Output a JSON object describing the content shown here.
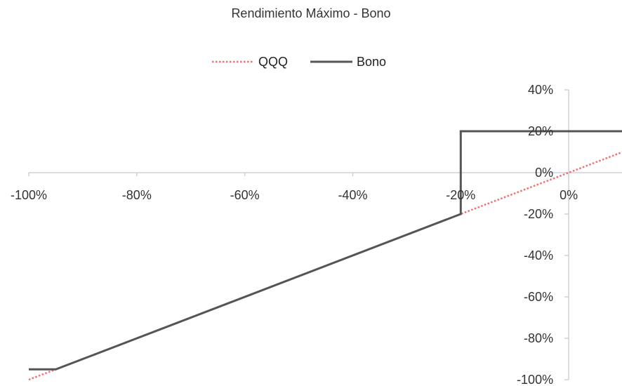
{
  "chart_data": {
    "type": "line",
    "title": "Rendimiento Máximo  - Bono",
    "xlabel": "",
    "ylabel": "",
    "xlim": [
      -100,
      10
    ],
    "ylim": [
      -100,
      40
    ],
    "x_ticks": [
      -100,
      -80,
      -60,
      -40,
      -20,
      0
    ],
    "x_tick_labels": [
      "-100%",
      "-80%",
      "-60%",
      "-40%",
      "-20%",
      "0%"
    ],
    "y_ticks": [
      40,
      20,
      0,
      -20,
      -40,
      -60,
      -80,
      -100
    ],
    "y_tick_labels": [
      "40%",
      "20%",
      "0%",
      "-20%",
      "-40%",
      "-60%",
      "-80%",
      "-100%"
    ],
    "grid": false,
    "legend_position": "top",
    "series": [
      {
        "name": "QQQ",
        "color": "#f07070",
        "style": "dotted",
        "points": [
          [
            -100,
            -100
          ],
          [
            10,
            10
          ]
        ]
      },
      {
        "name": "Bono",
        "color": "#555555",
        "style": "solid",
        "points": [
          [
            -100,
            -95
          ],
          [
            -95,
            -95
          ],
          [
            -20,
            -20
          ],
          [
            -20,
            20
          ],
          [
            10,
            20
          ]
        ]
      }
    ]
  }
}
